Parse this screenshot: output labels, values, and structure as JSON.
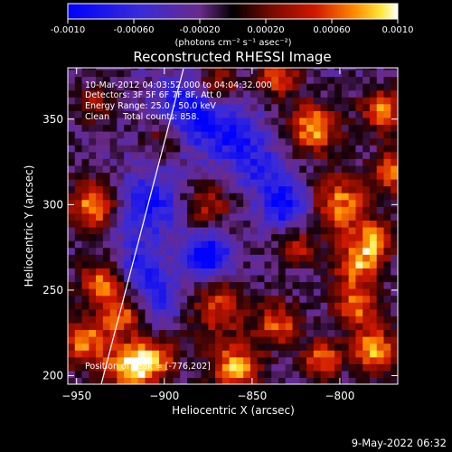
{
  "chart_data": {
    "type": "heatmap",
    "title": "Reconstructed RHESSI Image",
    "xlabel": "Heliocentric X (arcsec)",
    "ylabel": "Heliocentric Y (arcsec)",
    "xlim": [
      -955,
      -767
    ],
    "ylim": [
      195,
      380
    ],
    "x_ticks": [
      -950,
      -900,
      -850,
      -800
    ],
    "y_ticks": [
      200,
      250,
      300,
      350
    ],
    "colorbar": {
      "min": -0.001,
      "max": 0.001,
      "ticks": [
        "-0.0010",
        "-0.00060",
        "-0.00020",
        "0.00020",
        "0.00060",
        "0.0010"
      ],
      "units_label": "(photons cm⁻² s⁻¹ asec⁻²)"
    },
    "annotations": [
      "10-Mar-2012 04:03:52.000 to 04:04:32.000",
      "Detectors: 3F 5F 6F 7F 8F, Att 0",
      "Energy Range: 25.0 - 50.0 keV",
      "Clean     Total counts: 858."
    ],
    "peak_label": "Position of Peak = [-776,202]",
    "timestamp": "9-May-2022 06:32",
    "colors": {
      "low": "#0000ff",
      "mid_low": "#5a2da0",
      "zero": "#000000",
      "mid_high": "#cc2200",
      "high": "#ffffff"
    }
  }
}
